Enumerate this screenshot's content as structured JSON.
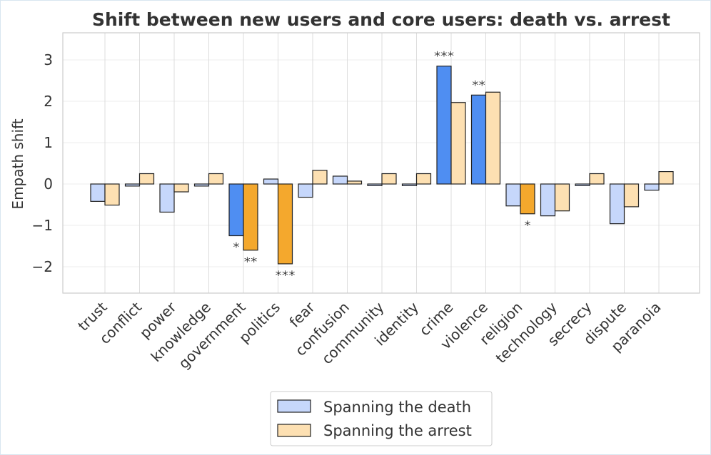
{
  "chart_data": {
    "type": "bar",
    "title": "Shift between new users and core users: death vs. arrest",
    "xlabel": "",
    "ylabel": "Empath shift",
    "ylim": [
      -2.65,
      3.65
    ],
    "yticks": [
      3,
      2,
      1,
      0,
      -1,
      -2
    ],
    "ytick_labels": [
      "3",
      "2",
      "1",
      "0",
      "−1",
      "−2"
    ],
    "categories": [
      "trust",
      "conflict",
      "power",
      "knowledge",
      "government",
      "politics",
      "fear",
      "confusion",
      "community",
      "identity",
      "crime",
      "violence",
      "religion",
      "technology",
      "secrecy",
      "dispute",
      "paranoia"
    ],
    "series": [
      {
        "name": "Spanning the death",
        "color": "#c6d7fb",
        "highlight_color": "#4f8ef2",
        "values": [
          -0.42,
          -0.05,
          -0.68,
          -0.05,
          -1.25,
          0.12,
          -0.32,
          0.19,
          -0.04,
          -0.04,
          2.85,
          2.15,
          -0.53,
          -0.77,
          -0.04,
          -0.96,
          -0.15
        ],
        "significance": [
          "",
          "",
          "",
          "",
          "*",
          "",
          "",
          "",
          "",
          "",
          "***",
          "**",
          "",
          "",
          "",
          "",
          ""
        ]
      },
      {
        "name": "Spanning the arrest",
        "color": "#fde0b2",
        "highlight_color": "#f4a82d",
        "values": [
          -0.51,
          0.25,
          -0.19,
          0.25,
          -1.6,
          -1.93,
          0.33,
          0.07,
          0.25,
          0.25,
          1.97,
          2.22,
          -0.72,
          -0.65,
          0.25,
          -0.55,
          0.3
        ],
        "significance": [
          "",
          "",
          "",
          "",
          "**",
          "***",
          "",
          "",
          "",
          "",
          "",
          "",
          "*",
          "",
          "",
          "",
          ""
        ]
      }
    ],
    "grid": true,
    "legend_position": "bottom-center"
  }
}
